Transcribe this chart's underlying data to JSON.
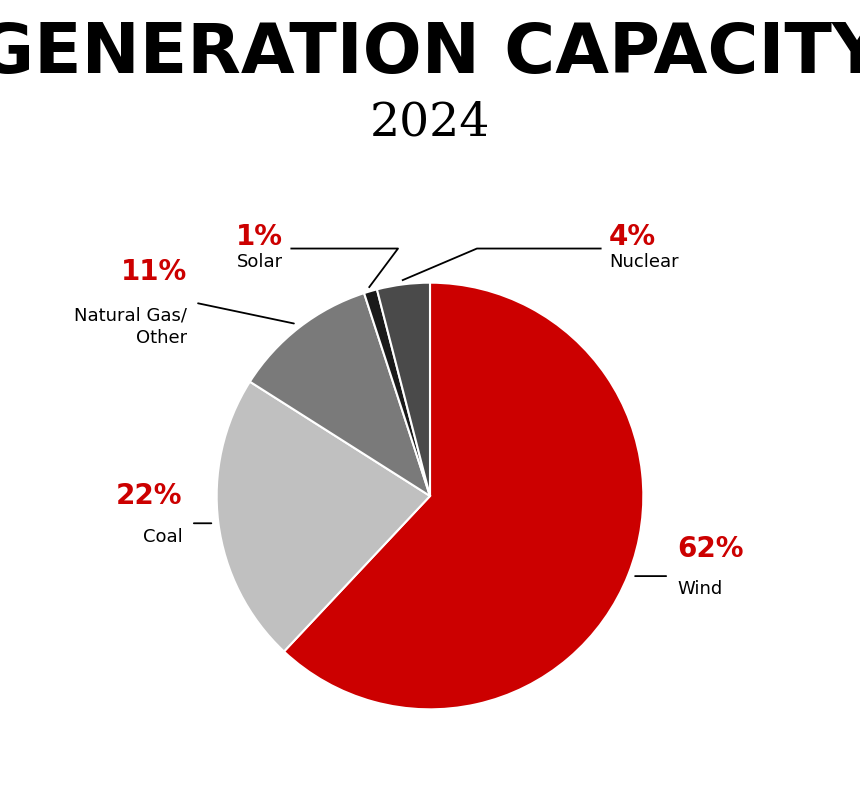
{
  "title_line1": "GENERATION CAPACITY",
  "title_line2": "2024",
  "slices": [
    {
      "label": "Wind",
      "pct": 62,
      "color": "#cc0000",
      "pct_color": "#cc0000"
    },
    {
      "label": "Coal",
      "pct": 22,
      "color": "#c0c0c0",
      "pct_color": "#cc0000"
    },
    {
      "label": "Natural Gas/\nOther",
      "pct": 11,
      "color": "#7a7a7a",
      "pct_color": "#cc0000"
    },
    {
      "label": "Solar",
      "pct": 1,
      "color": "#1a1a1a",
      "pct_color": "#cc0000"
    },
    {
      "label": "Nuclear",
      "pct": 4,
      "color": "#4a4a4a",
      "pct_color": "#cc0000"
    }
  ],
  "bg_color": "#ffffff",
  "line_color": "#000000",
  "label_fontsize": 13,
  "pct_fontsize": 20
}
